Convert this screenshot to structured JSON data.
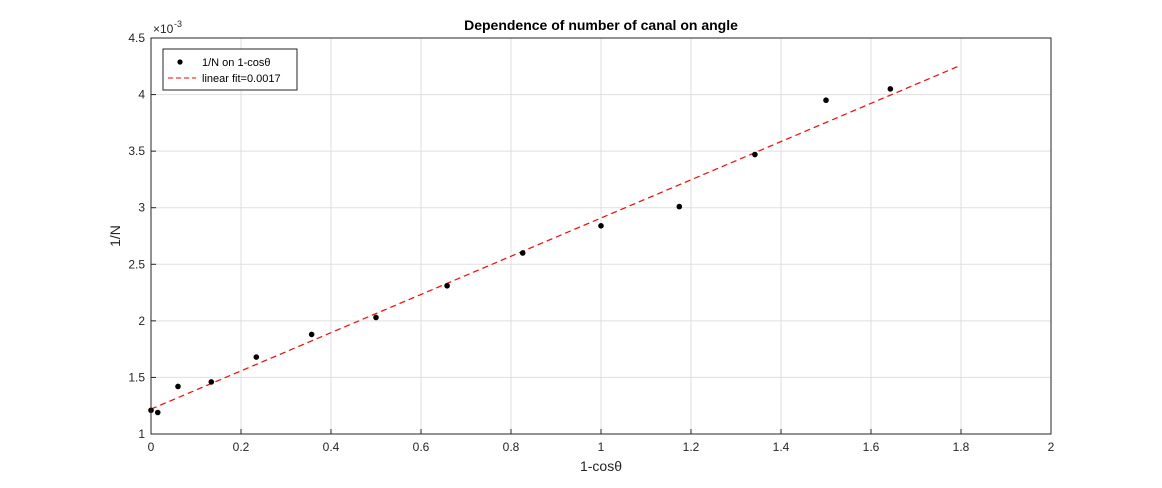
{
  "chart_data": {
    "type": "scatter",
    "title": "Dependence of number of canal on angle",
    "xlabel": "1-cosθ",
    "ylabel": "1/N",
    "y_exponent_label": "×10",
    "y_exponent_power": "-3",
    "xlim": [
      0,
      2
    ],
    "ylim": [
      1,
      4.5
    ],
    "y_scale_factor": 0.001,
    "x_ticks": [
      0,
      0.2,
      0.4,
      0.6,
      0.8,
      1,
      1.2,
      1.4,
      1.6,
      1.8,
      2
    ],
    "x_tick_labels": [
      "0",
      "0.2",
      "0.4",
      "0.6",
      "0.8",
      "1",
      "1.2",
      "1.4",
      "1.6",
      "1.8",
      "2"
    ],
    "y_ticks": [
      1,
      1.5,
      2,
      2.5,
      3,
      3.5,
      4,
      4.5
    ],
    "y_tick_labels": [
      "1",
      "1.5",
      "2",
      "2.5",
      "3",
      "3.5",
      "4",
      "4.5"
    ],
    "grid": true,
    "legend_position": "top-left",
    "series": [
      {
        "name": "1/N on 1-cosθ",
        "kind": "scatter",
        "color": "#000000",
        "x": [
          0.0,
          0.015,
          0.06,
          0.134,
          0.234,
          0.357,
          0.5,
          0.658,
          0.826,
          1.0,
          1.174,
          1.342,
          1.5,
          1.643
        ],
        "y": [
          1.21,
          1.19,
          1.42,
          1.46,
          1.68,
          1.88,
          2.03,
          2.31,
          2.6,
          2.84,
          3.01,
          3.47,
          3.95,
          4.05
        ]
      },
      {
        "name": "linear fit=0.0017",
        "kind": "line",
        "style": "dashed",
        "color": "#ff0000",
        "x": [
          0,
          1.8
        ],
        "y": [
          1.22,
          4.26
        ]
      }
    ]
  }
}
